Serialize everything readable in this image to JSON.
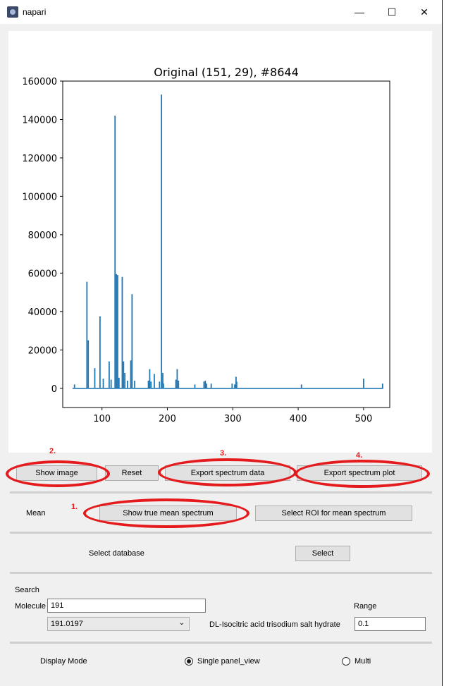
{
  "window": {
    "title": "napari",
    "minimize_glyph": "—",
    "maximize_glyph": "☐",
    "close_glyph": "✕"
  },
  "toolbar": {
    "show_image": "Show image",
    "reset": "Reset",
    "export_data": "Export spectrum data",
    "export_plot": "Export spectrum plot"
  },
  "mean": {
    "label": "Mean",
    "show_true": "Show true mean spectrum",
    "select_roi": "Select ROI for mean spectrum"
  },
  "database": {
    "label": "Select database",
    "button": "Select"
  },
  "search": {
    "heading": "Search",
    "molecule_label": "Molecule",
    "molecule_value": "191",
    "mass_selected": "191.0197",
    "compound_name": "DL-Isocitric acid trisodium salt hydrate",
    "range_label": "Range",
    "range_value": "0.1"
  },
  "display": {
    "label": "Display Mode",
    "option_single": "Single panel_view",
    "option_multi": "Multi",
    "selected": "single"
  },
  "annotations": {
    "n1": "1.",
    "n2": "2.",
    "n3": "3.",
    "n4": "4.",
    "color": "#e41a1c"
  },
  "chart_data": {
    "type": "line",
    "title": "Original (151, 29), #8644",
    "xlabel": "",
    "ylabel": "",
    "xlim": [
      40,
      540
    ],
    "ylim": [
      -10000,
      160000
    ],
    "xticks": [
      100,
      200,
      300,
      400,
      500
    ],
    "yticks": [
      0,
      20000,
      40000,
      60000,
      80000,
      100000,
      120000,
      140000,
      160000
    ],
    "color": "#1f77b4",
    "x_range": [
      55,
      530
    ],
    "peaks": [
      {
        "x": 58,
        "y": 2000
      },
      {
        "x": 77,
        "y": 55500
      },
      {
        "x": 79,
        "y": 25000
      },
      {
        "x": 89,
        "y": 10500
      },
      {
        "x": 97,
        "y": 37500
      },
      {
        "x": 102,
        "y": 5000
      },
      {
        "x": 111,
        "y": 14000
      },
      {
        "x": 114,
        "y": 4500
      },
      {
        "x": 120,
        "y": 142000
      },
      {
        "x": 122,
        "y": 59500
      },
      {
        "x": 124,
        "y": 59000
      },
      {
        "x": 126,
        "y": 5500
      },
      {
        "x": 131,
        "y": 58000
      },
      {
        "x": 133,
        "y": 14000
      },
      {
        "x": 135,
        "y": 8000
      },
      {
        "x": 139,
        "y": 4000
      },
      {
        "x": 144,
        "y": 14500
      },
      {
        "x": 146,
        "y": 49000
      },
      {
        "x": 150,
        "y": 4000
      },
      {
        "x": 171,
        "y": 4000
      },
      {
        "x": 173,
        "y": 10000
      },
      {
        "x": 175,
        "y": 3500
      },
      {
        "x": 180,
        "y": 7500
      },
      {
        "x": 188,
        "y": 3500
      },
      {
        "x": 191,
        "y": 153000
      },
      {
        "x": 193,
        "y": 8000
      },
      {
        "x": 194,
        "y": 2500
      },
      {
        "x": 213,
        "y": 4500
      },
      {
        "x": 215,
        "y": 10000
      },
      {
        "x": 217,
        "y": 4000
      },
      {
        "x": 242,
        "y": 2000
      },
      {
        "x": 256,
        "y": 3500
      },
      {
        "x": 258,
        "y": 4000
      },
      {
        "x": 260,
        "y": 2500
      },
      {
        "x": 267,
        "y": 2500
      },
      {
        "x": 299,
        "y": 2500
      },
      {
        "x": 303,
        "y": 2000
      },
      {
        "x": 305,
        "y": 6000
      },
      {
        "x": 306,
        "y": 3500
      },
      {
        "x": 405,
        "y": 2000
      },
      {
        "x": 500,
        "y": 5000
      },
      {
        "x": 529,
        "y": 2500
      }
    ]
  }
}
